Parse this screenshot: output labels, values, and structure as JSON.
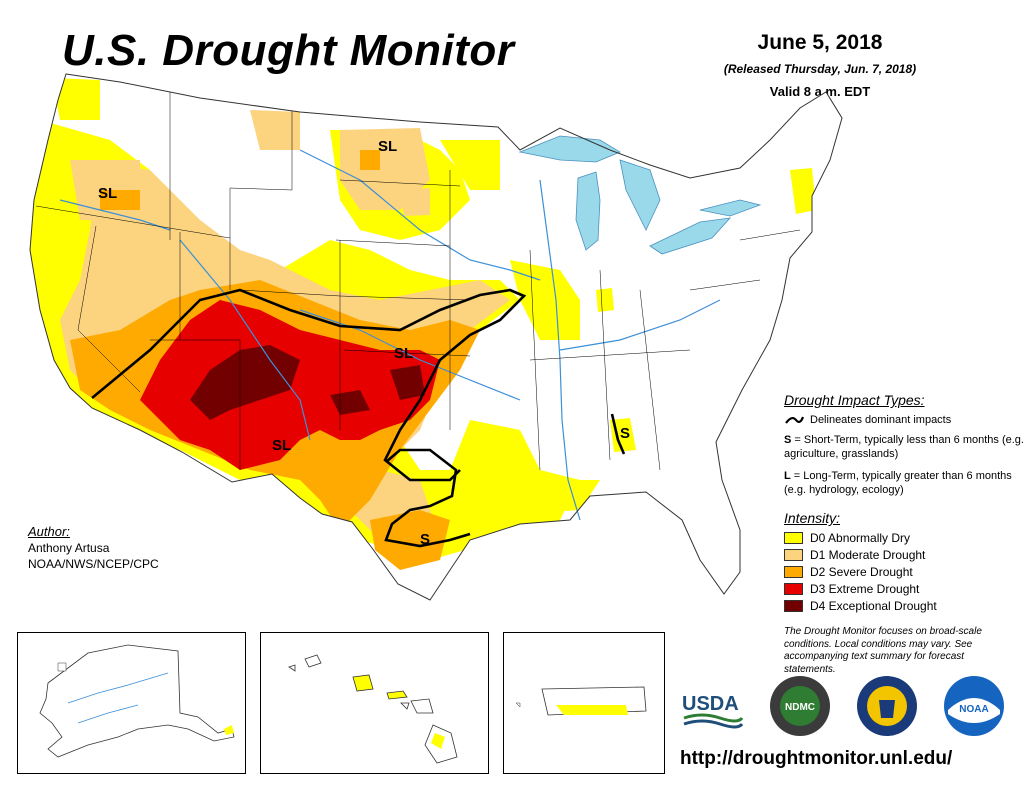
{
  "header": {
    "title": "U.S. Drought Monitor",
    "date": "June 5, 2018",
    "released": "(Released Thursday, Jun. 7, 2018)",
    "valid": "Valid 8 a.m. EDT"
  },
  "map_labels": [
    {
      "id": "sl-northern-plains",
      "text": "SL"
    },
    {
      "id": "sl-oregon",
      "text": "SL"
    },
    {
      "id": "sl-southern-plains",
      "text": "SL"
    },
    {
      "id": "sl-southwest",
      "text": "SL"
    },
    {
      "id": "s-texas",
      "text": "S"
    },
    {
      "id": "s-southeast",
      "text": "S"
    }
  ],
  "impacts": {
    "title": "Drought Impact Types:",
    "delineates": "Delineates dominant impacts",
    "short_term_key": "S",
    "short_term_text": " = Short-Term, typically less than 6 months (e.g. agriculture, grasslands)",
    "long_term_key": "L",
    "long_term_text": " = Long-Term, typically greater than 6 months (e.g. hydrology, ecology)"
  },
  "intensity": {
    "title": "Intensity:",
    "levels": [
      {
        "label": "D0 Abnormally Dry",
        "color": "#ffff00"
      },
      {
        "label": "D1 Moderate Drought",
        "color": "#fcd37f"
      },
      {
        "label": "D2 Severe Drought",
        "color": "#ffaa00"
      },
      {
        "label": "D3 Extreme Drought",
        "color": "#e60000"
      },
      {
        "label": "D4 Exceptional Drought",
        "color": "#730000"
      }
    ]
  },
  "focus_note": "The Drought Monitor focuses on broad-scale conditions. Local conditions may vary. See accompanying text summary for forecast statements.",
  "author": {
    "label": "Author:",
    "name": "Anthony Artusa",
    "org": "NOAA/NWS/NCEP/CPC"
  },
  "logos": {
    "usda": "USDA",
    "ndmc": "NDMC",
    "noaa": "NOAA"
  },
  "url": "http://droughtmonitor.unl.edu/",
  "colors": {
    "water": "#99d9ea",
    "river": "#3c8fd8",
    "boundary": "#000000"
  }
}
